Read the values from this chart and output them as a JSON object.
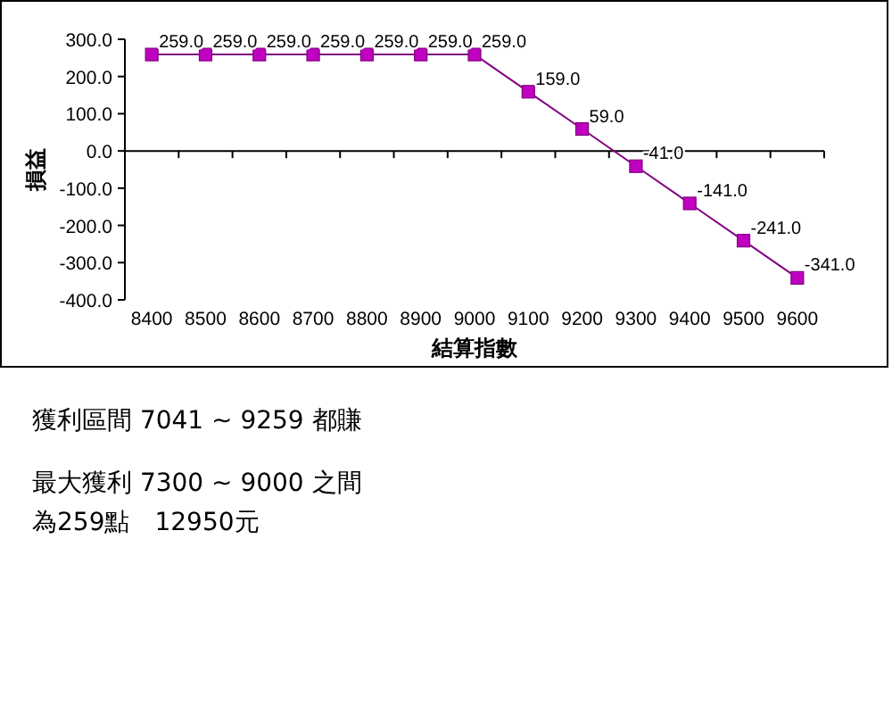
{
  "chart_data": {
    "type": "line",
    "xlabel": "結算指數",
    "ylabel": "損益",
    "categories": [
      "8400",
      "8500",
      "8600",
      "8700",
      "8800",
      "8900",
      "9000",
      "9100",
      "9200",
      "9300",
      "9400",
      "9500",
      "9600"
    ],
    "series": [
      {
        "color": "#c000c0",
        "values": [
          259,
          259,
          259,
          259,
          259,
          259,
          259,
          159,
          59,
          -41,
          -141,
          -241,
          -341
        ],
        "value_labels": [
          "259.0",
          "259.0",
          "259.0",
          "259.0",
          "259.0",
          "259.0",
          "259.0",
          "159.0",
          "59.0",
          "-41.0",
          "-141.0",
          "-241.0",
          "-341.0"
        ]
      }
    ],
    "ylim": [
      -400,
      300
    ],
    "yticks": [
      {
        "value": 300,
        "label": "300.0"
      },
      {
        "value": 200,
        "label": "200.0"
      },
      {
        "value": 100,
        "label": "100.0"
      },
      {
        "value": 0,
        "label": "0.0"
      },
      {
        "value": -100,
        "label": "-100.0"
      },
      {
        "value": -200,
        "label": "-200.0"
      },
      {
        "value": -300,
        "label": "-300.0"
      },
      {
        "value": -400,
        "label": "-400.0"
      }
    ],
    "marker": "square",
    "line_style": "solid",
    "annotations": [
      "獲利區間 7041 ~ 9259 都賺",
      "最大獲利 7300 ~ 9000 之間",
      "為259點　12950元"
    ]
  }
}
